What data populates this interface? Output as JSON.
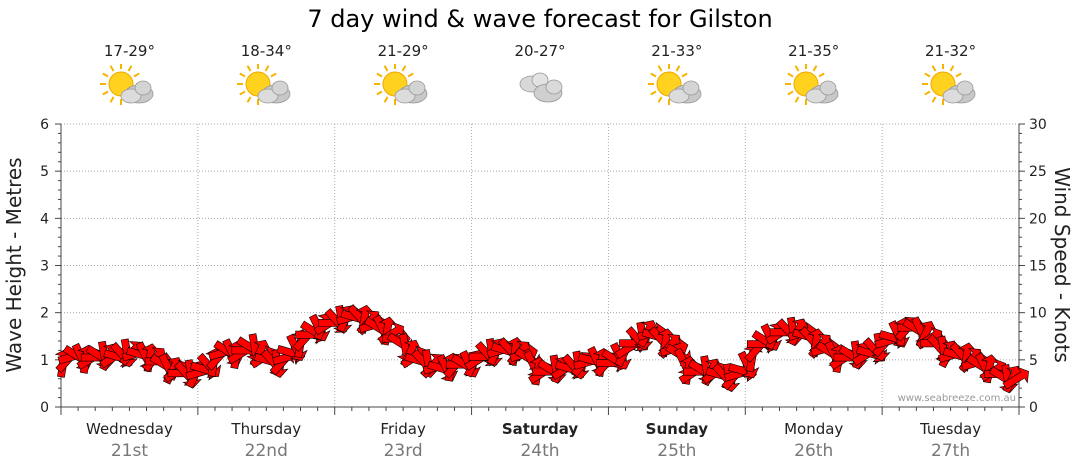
{
  "chart_data": {
    "type": "line",
    "title": "7 day wind & wave forecast for Gilston",
    "ylabel_left": "Wave Height - Metres",
    "ylabel_right": "Wind Speed - Knots",
    "ylim_left": [
      0,
      6
    ],
    "ylim_right": [
      0,
      30
    ],
    "yticks_left": [
      "0",
      "1",
      "2",
      "3",
      "4",
      "5",
      "6"
    ],
    "yticks_right": [
      "0",
      "5",
      "10",
      "15",
      "20",
      "25",
      "30"
    ],
    "grid": true,
    "credit": "www.seabreeze.com.au",
    "days": [
      {
        "name": "Wednesday",
        "date": "21st",
        "temp": "17-29°",
        "icon": "sun-cloud-icon",
        "bold": false
      },
      {
        "name": "Thursday",
        "date": "22nd",
        "temp": "18-34°",
        "icon": "sun-cloud-icon",
        "bold": false
      },
      {
        "name": "Friday",
        "date": "23rd",
        "temp": "21-29°",
        "icon": "sun-cloud-icon",
        "bold": false
      },
      {
        "name": "Saturday",
        "date": "24th",
        "temp": "20-27°",
        "icon": "cloud-icon",
        "bold": true
      },
      {
        "name": "Sunday",
        "date": "25th",
        "temp": "21-33°",
        "icon": "sun-cloud-icon",
        "bold": true
      },
      {
        "name": "Monday",
        "date": "26th",
        "temp": "21-35°",
        "icon": "sun-cloud-icon",
        "bold": false
      },
      {
        "name": "Tuesday",
        "date": "27th",
        "temp": "21-32°",
        "icon": "sun-cloud-icon",
        "bold": false
      }
    ],
    "wind_series": {
      "name": "Wind",
      "color": "#ff0000",
      "unit": "knots",
      "x_days": [
        0,
        0.1,
        0.2,
        0.3,
        0.4,
        0.5,
        0.6,
        0.7,
        0.8,
        0.9,
        1.0,
        1.1,
        1.2,
        1.3,
        1.4,
        1.5,
        1.6,
        1.7,
        1.8,
        1.9,
        2.0,
        2.1,
        2.2,
        2.3,
        2.4,
        2.5,
        2.6,
        2.7,
        2.8,
        2.9,
        3.0,
        3.1,
        3.2,
        3.3,
        3.4,
        3.5,
        3.6,
        3.7,
        3.8,
        3.9,
        4.0,
        4.1,
        4.2,
        4.3,
        4.4,
        4.5,
        4.6,
        4.7,
        4.8,
        4.9,
        5.0,
        5.1,
        5.2,
        5.3,
        5.4,
        5.5,
        5.6,
        5.7,
        5.8,
        5.9,
        6.0,
        6.1,
        6.2,
        6.3,
        6.4,
        6.5,
        6.6,
        6.7,
        6.8,
        6.9,
        7.0
      ],
      "values": [
        4.5,
        5.5,
        5.0,
        5.5,
        5.2,
        5.8,
        5.5,
        5.0,
        4.0,
        3.5,
        3.5,
        4.5,
        6.0,
        5.5,
        6.5,
        5.0,
        4.5,
        6.0,
        7.5,
        8.5,
        9.0,
        9.5,
        9.5,
        8.5,
        8.0,
        6.5,
        5.0,
        4.5,
        4.0,
        4.5,
        4.5,
        5.5,
        6.0,
        6.0,
        5.5,
        3.5,
        4.0,
        4.0,
        4.5,
        5.0,
        4.5,
        5.5,
        7.0,
        8.0,
        7.0,
        6.0,
        3.5,
        4.0,
        3.5,
        3.0,
        4.0,
        6.5,
        7.5,
        8.0,
        8.0,
        7.0,
        6.0,
        5.0,
        5.5,
        5.5,
        6.5,
        7.5,
        8.5,
        8.0,
        6.5,
        5.5,
        5.5,
        4.5,
        4.0,
        3.0,
        3.0
      ]
    }
  }
}
